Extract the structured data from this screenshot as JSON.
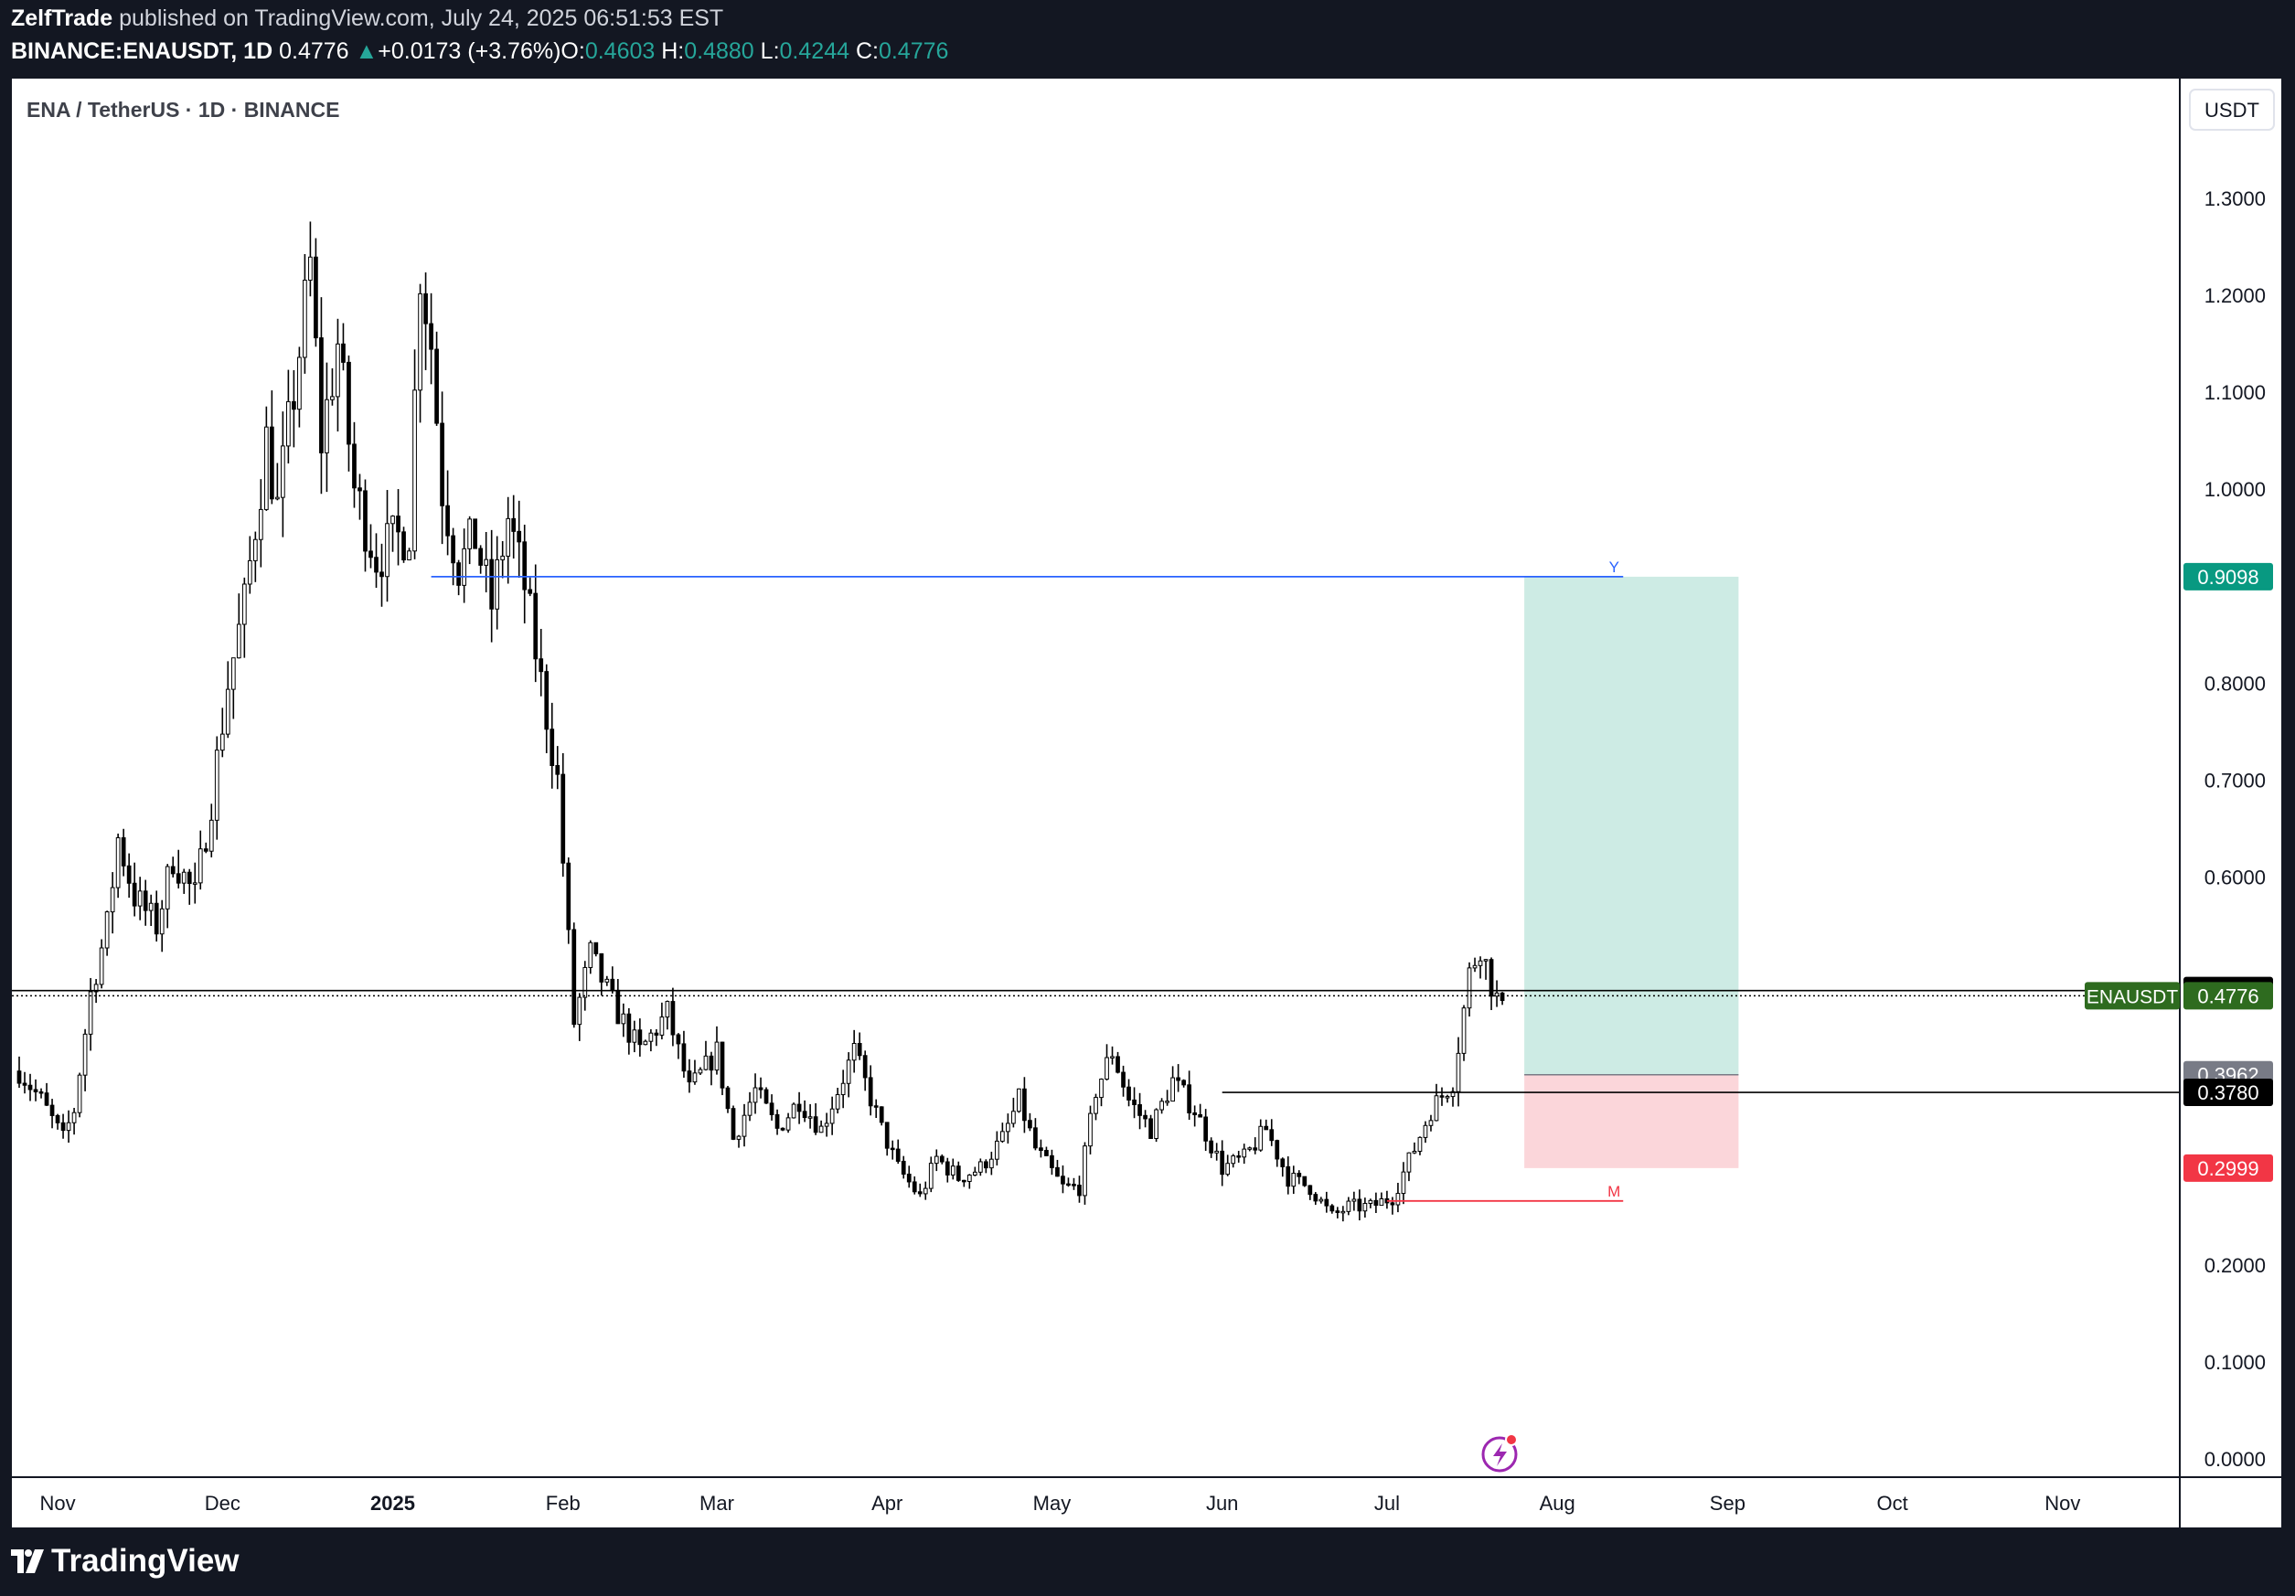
{
  "header": {
    "author": "ZelfTrade",
    "published_text": "published on TradingView.com, July 24, 2025 06:51:53 EST",
    "symbol": "BINANCE:ENAUSDT, 1D",
    "last": "0.4776",
    "change_arrow": "▲",
    "change": "+0.0173 (+3.76%)",
    "o_label": "O:",
    "o": "0.4603",
    "h_label": "H:",
    "h": "0.4880",
    "l_label": "L:",
    "l": "0.4244",
    "c_label": "C:",
    "c": "0.4776"
  },
  "footer": {
    "brand": "TradingView"
  },
  "colors": {
    "up_candle": "#ffffff",
    "down_candle": "#000000",
    "wick": "#000000",
    "target_zone": "#cdebe4",
    "stop_zone": "#fbd6da",
    "target_label": "#089981",
    "stop_label": "#f23645",
    "current_label": "#2e6b1f",
    "entry_label": "#787b86",
    "level_label": "#000000",
    "y_line": "#2962ff",
    "m_line": "#f23645",
    "lightning_icon": "#9c27b0"
  },
  "chart_data": {
    "type": "candlestick",
    "title": "ENA / TetherUS · 1D · BINANCE",
    "currency": "USDT",
    "y_range": [
      0.0,
      1.3
    ],
    "y_ticks": [
      "1.3000",
      "1.2000",
      "1.1000",
      "1.0000",
      "0.8000",
      "0.7000",
      "0.6000",
      "0.2000",
      "0.1000",
      "0.0000"
    ],
    "x_range": [
      "2024-10-25",
      "2025-11-20"
    ],
    "x_ticks": [
      {
        "label": "Nov",
        "date": "2024-11-01",
        "bold": false
      },
      {
        "label": "Dec",
        "date": "2024-12-01",
        "bold": false
      },
      {
        "label": "2025",
        "date": "2025-01-01",
        "bold": true
      },
      {
        "label": "Feb",
        "date": "2025-02-01",
        "bold": false
      },
      {
        "label": "Mar",
        "date": "2025-03-01",
        "bold": false
      },
      {
        "label": "Apr",
        "date": "2025-04-01",
        "bold": false
      },
      {
        "label": "May",
        "date": "2025-05-01",
        "bold": false
      },
      {
        "label": "Jun",
        "date": "2025-06-01",
        "bold": false
      },
      {
        "label": "Jul",
        "date": "2025-07-01",
        "bold": false
      },
      {
        "label": "Aug",
        "date": "2025-08-01",
        "bold": false
      },
      {
        "label": "Sep",
        "date": "2025-09-01",
        "bold": false
      },
      {
        "label": "Oct",
        "date": "2025-10-01",
        "bold": false
      },
      {
        "label": "Nov",
        "date": "2025-11-01",
        "bold": false
      }
    ],
    "price_path": [
      [
        "2024-10-25",
        0.4
      ],
      [
        "2024-10-29",
        0.37
      ],
      [
        "2024-11-02",
        0.33
      ],
      [
        "2024-11-04",
        0.36
      ],
      [
        "2024-11-07",
        0.48
      ],
      [
        "2024-11-10",
        0.55
      ],
      [
        "2024-11-12",
        0.64
      ],
      [
        "2024-11-15",
        0.58
      ],
      [
        "2024-11-19",
        0.55
      ],
      [
        "2024-11-22",
        0.62
      ],
      [
        "2024-11-26",
        0.58
      ],
      [
        "2024-11-29",
        0.68
      ],
      [
        "2024-12-02",
        0.8
      ],
      [
        "2024-12-05",
        0.88
      ],
      [
        "2024-12-09",
        1.05
      ],
      [
        "2024-12-11",
        0.98
      ],
      [
        "2024-12-14",
        1.1
      ],
      [
        "2024-12-17",
        1.23
      ],
      [
        "2024-12-19",
        1.05
      ],
      [
        "2024-12-22",
        1.15
      ],
      [
        "2024-12-25",
        1.0
      ],
      [
        "2024-12-29",
        0.93
      ],
      [
        "2025-01-02",
        0.95
      ],
      [
        "2025-01-04",
        0.96
      ],
      [
        "2025-01-06",
        1.23
      ],
      [
        "2025-01-08",
        1.15
      ],
      [
        "2025-01-10",
        1.0
      ],
      [
        "2025-01-13",
        0.92
      ],
      [
        "2025-01-16",
        0.95
      ],
      [
        "2025-01-19",
        0.88
      ],
      [
        "2025-01-22",
        0.97
      ],
      [
        "2025-01-25",
        0.9
      ],
      [
        "2025-01-28",
        0.8
      ],
      [
        "2025-01-31",
        0.7
      ],
      [
        "2025-02-03",
        0.45
      ],
      [
        "2025-02-06",
        0.52
      ],
      [
        "2025-02-10",
        0.47
      ],
      [
        "2025-02-15",
        0.42
      ],
      [
        "2025-02-20",
        0.46
      ],
      [
        "2025-02-24",
        0.38
      ],
      [
        "2025-03-01",
        0.42
      ],
      [
        "2025-03-04",
        0.33
      ],
      [
        "2025-03-08",
        0.38
      ],
      [
        "2025-03-12",
        0.34
      ],
      [
        "2025-03-16",
        0.37
      ],
      [
        "2025-03-20",
        0.34
      ],
      [
        "2025-03-26",
        0.42
      ],
      [
        "2025-03-31",
        0.34
      ],
      [
        "2025-04-03",
        0.3
      ],
      [
        "2025-04-07",
        0.27
      ],
      [
        "2025-04-10",
        0.31
      ],
      [
        "2025-04-14",
        0.29
      ],
      [
        "2025-04-18",
        0.3
      ],
      [
        "2025-04-22",
        0.33
      ],
      [
        "2025-04-25",
        0.37
      ],
      [
        "2025-04-28",
        0.32
      ],
      [
        "2025-05-03",
        0.28
      ],
      [
        "2025-05-06",
        0.28
      ],
      [
        "2025-05-09",
        0.38
      ],
      [
        "2025-05-12",
        0.42
      ],
      [
        "2025-05-15",
        0.37
      ],
      [
        "2025-05-19",
        0.34
      ],
      [
        "2025-05-23",
        0.39
      ],
      [
        "2025-05-27",
        0.36
      ],
      [
        "2025-06-01",
        0.3
      ],
      [
        "2025-06-05",
        0.31
      ],
      [
        "2025-06-09",
        0.34
      ],
      [
        "2025-06-13",
        0.29
      ],
      [
        "2025-06-17",
        0.28
      ],
      [
        "2025-06-21",
        0.25
      ],
      [
        "2025-06-24",
        0.26
      ],
      [
        "2025-06-28",
        0.26
      ],
      [
        "2025-07-02",
        0.27
      ],
      [
        "2025-07-06",
        0.32
      ],
      [
        "2025-07-09",
        0.36
      ],
      [
        "2025-07-13",
        0.39
      ],
      [
        "2025-07-16",
        0.5
      ],
      [
        "2025-07-18",
        0.53
      ],
      [
        "2025-07-20",
        0.49
      ],
      [
        "2025-07-22",
        0.46
      ]
    ],
    "levels": [
      {
        "name": "resistance-line",
        "value": 0.483,
        "label": "0.4830",
        "style": "solid"
      },
      {
        "name": "current-price-line",
        "value": 0.4776,
        "label": "0.4776",
        "style": "dotted",
        "tag": "ENAUSDT"
      },
      {
        "name": "support-line",
        "value": 0.378,
        "label": "0.3780",
        "style": "solid"
      }
    ],
    "position": {
      "start": "2025-07-26",
      "end": "2025-09-03",
      "entry": 0.3962,
      "entry_label": "0.3962",
      "target": 0.9098,
      "target_label": "0.9098",
      "stop": 0.2999,
      "stop_label": "0.2999"
    },
    "annotations": [
      {
        "name": "y-line",
        "text": "Y",
        "value": 0.9098,
        "start": "2025-01-08",
        "end": "2025-08-13"
      },
      {
        "name": "m-line",
        "text": "M",
        "value": 0.266,
        "start": "2025-07-01",
        "end": "2025-08-13"
      }
    ]
  }
}
